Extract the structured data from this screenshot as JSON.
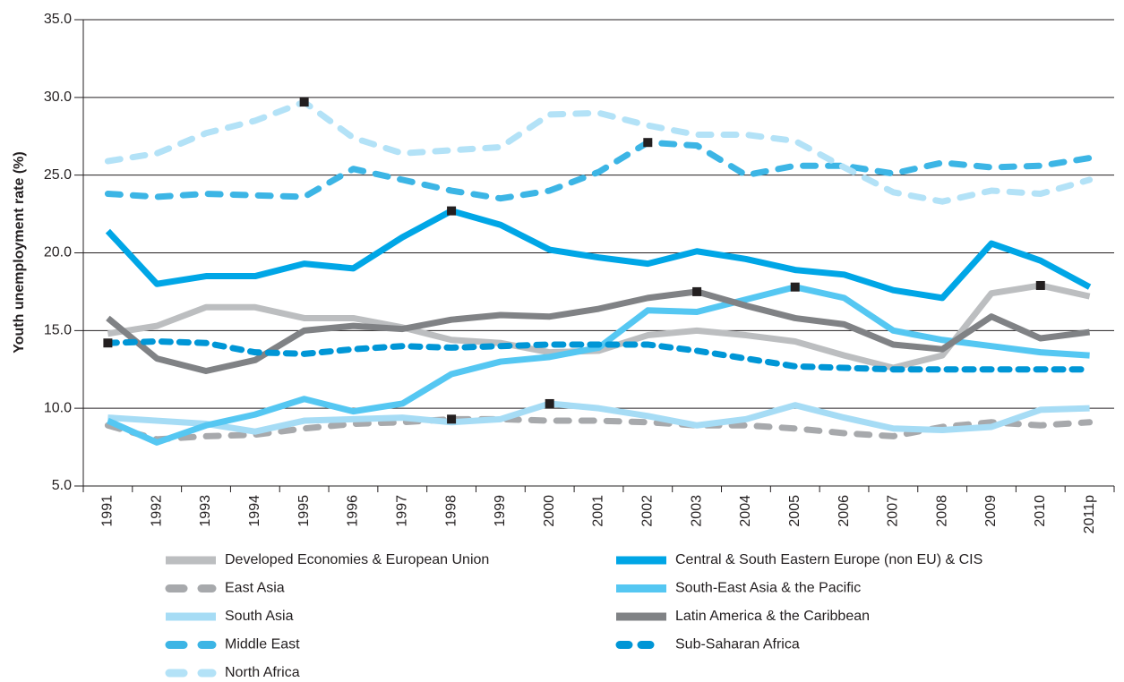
{
  "chart_data": {
    "type": "line",
    "y_label": "Youth unemployment rate (%)",
    "categories": [
      "1991",
      "1992",
      "1993",
      "1994",
      "1995",
      "1996",
      "1997",
      "1998",
      "1999",
      "2000",
      "2001",
      "2002",
      "2003",
      "2004",
      "2005",
      "2006",
      "2007",
      "2008",
      "2009",
      "2010",
      "2011p"
    ],
    "ylim": [
      5,
      35
    ],
    "yticks": [
      {
        "value": 5,
        "label": "5.0"
      },
      {
        "value": 10,
        "label": "10.0"
      },
      {
        "value": 15,
        "label": "15.0"
      },
      {
        "value": 20,
        "label": "20.0"
      },
      {
        "value": 25,
        "label": "25.0"
      },
      {
        "value": 30,
        "label": "30.0"
      },
      {
        "value": 35,
        "label": "35.0"
      }
    ],
    "grid": true,
    "series": [
      {
        "name": "Developed Economies & European Union",
        "color": "#bcbec0",
        "style": "solid",
        "marked": 19,
        "values": [
          14.8,
          15.3,
          16.5,
          16.5,
          15.8,
          15.8,
          15.2,
          14.4,
          14.2,
          13.6,
          13.7,
          14.7,
          15.0,
          14.7,
          14.3,
          13.4,
          12.6,
          13.4,
          17.4,
          17.9,
          17.2
        ]
      },
      {
        "name": "East Asia",
        "color": "#a7a9ac",
        "style": "dashed",
        "marked": 7,
        "values": [
          8.9,
          8.0,
          8.2,
          8.3,
          8.7,
          9.0,
          9.1,
          9.3,
          9.3,
          9.2,
          9.2,
          9.1,
          8.9,
          8.9,
          8.7,
          8.4,
          8.2,
          8.8,
          9.1,
          8.9,
          9.1
        ]
      },
      {
        "name": "South Asia",
        "color": "#a6dcf5",
        "style": "solid",
        "marked": 9,
        "values": [
          9.4,
          9.2,
          9.0,
          8.5,
          9.2,
          9.3,
          9.4,
          9.1,
          9.3,
          10.3,
          10.0,
          9.5,
          8.9,
          9.3,
          10.2,
          9.4,
          8.7,
          8.6,
          8.8,
          9.9,
          10.0
        ]
      },
      {
        "name": "Middle East",
        "color": "#3cb5e5",
        "style": "dashed",
        "marked": 11,
        "values": [
          23.8,
          23.6,
          23.8,
          23.7,
          23.6,
          25.4,
          24.7,
          24.0,
          23.5,
          24.0,
          25.2,
          27.1,
          26.9,
          25.0,
          25.6,
          25.6,
          25.1,
          25.8,
          25.5,
          25.6,
          26.1
        ]
      },
      {
        "name": "North Africa",
        "color": "#b3e2f7",
        "style": "dashed",
        "marked": 4,
        "values": [
          25.9,
          26.4,
          27.7,
          28.5,
          29.7,
          27.4,
          26.4,
          26.6,
          26.8,
          28.9,
          29.0,
          28.2,
          27.6,
          27.6,
          27.2,
          25.5,
          23.9,
          23.3,
          24.0,
          23.8,
          24.7
        ]
      },
      {
        "name": "Central & South Eastern Europe (non EU) & CIS",
        "color": "#00a6e6",
        "style": "solid",
        "marked": 7,
        "values": [
          21.4,
          18.0,
          18.5,
          18.5,
          19.3,
          19.0,
          21.0,
          22.7,
          21.8,
          20.2,
          19.7,
          19.3,
          20.1,
          19.6,
          18.9,
          18.6,
          17.6,
          17.1,
          20.6,
          19.5,
          17.8
        ]
      },
      {
        "name": "South-East Asia & the Pacific",
        "color": "#55c7f2",
        "style": "solid",
        "marked": 14,
        "values": [
          9.2,
          7.8,
          8.9,
          9.6,
          10.6,
          9.8,
          10.3,
          12.2,
          13.0,
          13.3,
          13.9,
          16.3,
          16.2,
          17.0,
          17.8,
          17.1,
          15.0,
          14.4,
          14.0,
          13.6,
          13.4
        ]
      },
      {
        "name": "Latin America & the Caribbean",
        "color": "#808285",
        "style": "solid",
        "marked": 12,
        "values": [
          15.8,
          13.2,
          12.4,
          13.1,
          15.0,
          15.3,
          15.1,
          15.7,
          16.0,
          15.9,
          16.4,
          17.1,
          17.5,
          16.6,
          15.8,
          15.4,
          14.1,
          13.8,
          15.9,
          14.5,
          14.9
        ]
      },
      {
        "name": "Sub-Saharan Africa",
        "color": "#0096d6",
        "style": "dotted",
        "marked": 0,
        "values": [
          14.2,
          14.3,
          14.2,
          13.6,
          13.5,
          13.8,
          14.0,
          13.9,
          14.0,
          14.1,
          14.1,
          14.1,
          13.7,
          13.2,
          12.7,
          12.6,
          12.5,
          12.5,
          12.5,
          12.5,
          12.5
        ]
      }
    ]
  }
}
